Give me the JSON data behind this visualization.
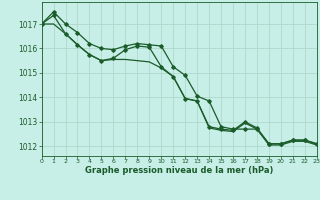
{
  "background_color": "#c8eee8",
  "grid_color": "#b0d8cc",
  "line_color": "#1a5c2a",
  "xlabel": "Graphe pression niveau de la mer (hPa)",
  "xlim": [
    0,
    23
  ],
  "ylim": [
    1011.6,
    1017.9
  ],
  "yticks": [
    1012,
    1013,
    1014,
    1015,
    1016,
    1017
  ],
  "xticks": [
    0,
    1,
    2,
    3,
    4,
    5,
    6,
    7,
    8,
    9,
    10,
    11,
    12,
    13,
    14,
    15,
    16,
    17,
    18,
    19,
    20,
    21,
    22,
    23
  ],
  "series1": [
    1017.0,
    1017.5,
    1017.0,
    1016.65,
    1016.2,
    1016.0,
    1015.95,
    1016.1,
    1016.2,
    1016.15,
    1016.1,
    1015.25,
    1014.9,
    1014.05,
    1013.85,
    1012.8,
    1012.7,
    1012.7,
    1012.7,
    1012.1,
    1012.1,
    1012.25,
    1012.25,
    1012.1
  ],
  "series2": [
    1017.0,
    1017.35,
    1016.6,
    1016.15,
    1015.75,
    1015.5,
    1015.6,
    1015.95,
    1016.1,
    1016.05,
    1015.25,
    1014.85,
    1013.95,
    1013.85,
    1012.8,
    1012.7,
    1012.65,
    1013.0,
    1012.75,
    1012.1,
    1012.1,
    1012.25,
    1012.25,
    1012.1
  ],
  "series3": [
    1017.0,
    1017.0,
    1016.6,
    1016.15,
    1015.75,
    1015.5,
    1015.55,
    1015.55,
    1015.5,
    1015.45,
    1015.2,
    1014.85,
    1013.95,
    1013.85,
    1012.75,
    1012.65,
    1012.6,
    1012.95,
    1012.7,
    1012.05,
    1012.05,
    1012.2,
    1012.2,
    1012.05
  ]
}
